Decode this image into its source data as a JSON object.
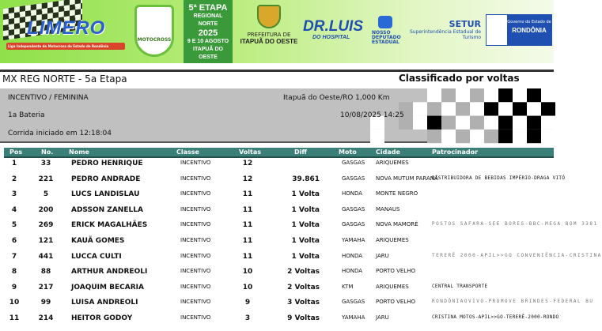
{
  "banner": {
    "limero": {
      "word": "LIMERO",
      "subtitle": "Liga Independente de Motocross do Estado de Rondônia"
    },
    "event_badge": "MOTOCROSS",
    "etapa": [
      "5ª ETAPA",
      "REGIONAL NORTE",
      "2025",
      "9 E 10 AGOSTO",
      "ITAPUÃ DO OESTE"
    ],
    "prefeitura": {
      "line1": "PREFEITURA DE",
      "line2": "ITAPUÃ DO OESTE"
    },
    "drluis": {
      "name": "DR.LUIS",
      "sub": "DO HOSPITAL"
    },
    "deputado": [
      "NOSSO",
      "DEPUTADO",
      "ESTADUAL"
    ],
    "setur": {
      "title": "SETUR",
      "sub": "Superintendência Estadual de Turismo"
    },
    "rondonia": {
      "line1": "Governo do Estado de",
      "line2": "RONDÔNIA"
    }
  },
  "header": {
    "title": "MX REG NORTE - 5a Etapa",
    "classification": "Classificado por voltas"
  },
  "info": {
    "category": "INCENTIVO / FEMININA",
    "heat": "1a Bateria",
    "start": "Corrida iniciado em 12:18:04",
    "location": "Itapuã do Oeste/RO 1,000 Km",
    "datetime": "10/08/2025 14:25"
  },
  "columns": [
    "Pos",
    "No.",
    "Nome",
    "Classe",
    "Voltas",
    "Diff",
    "Moto",
    "Cidade",
    "Patrocinador"
  ],
  "rows": [
    {
      "pos": "1",
      "no": "33",
      "nome": "PEDRO HENRIQUE",
      "classe": "INCENTIVO",
      "voltas": "12",
      "diff": "",
      "moto": "GASGAS",
      "cidade": "ARIQUEMES",
      "patrocinador": ""
    },
    {
      "pos": "2",
      "no": "221",
      "nome": "PEDRO ANDRADE",
      "classe": "INCENTIVO",
      "voltas": "12",
      "diff": "39.861",
      "moto": "GASGAS",
      "cidade": "NOVA MUTUM PARANÁ",
      "patrocinador": "DISTRIBUIDORA DE BEBIDAS IMPÉRIO-DRAGA VITÓ"
    },
    {
      "pos": "3",
      "no": "5",
      "nome": "LUCS LANDISLAU",
      "classe": "INCENTIVO",
      "voltas": "11",
      "diff": "1 Volta",
      "moto": "HONDA",
      "cidade": "MONTE NEGRO",
      "patrocinador": ""
    },
    {
      "pos": "4",
      "no": "200",
      "nome": "ADSSON ZANELLA",
      "classe": "INCENTIVO",
      "voltas": "11",
      "diff": "1 Volta",
      "moto": "GASGAS",
      "cidade": "MANAUS",
      "patrocinador": ""
    },
    {
      "pos": "5",
      "no": "269",
      "nome": "ERICK MAGALHÃES",
      "classe": "INCENTIVO",
      "voltas": "11",
      "diff": "1 Volta",
      "moto": "GASGAS",
      "cidade": "NOVA MAMORÉ",
      "patrocinador": "POSTOS SAFARA-SEE BORES-BBC-MEGA BOM 3381"
    },
    {
      "pos": "6",
      "no": "121",
      "nome": "KAUÃ GOMES",
      "classe": "INCENTIVO",
      "voltas": "11",
      "diff": "1 Volta",
      "moto": "YAMAHA",
      "cidade": "ARIQUEMES",
      "patrocinador": ""
    },
    {
      "pos": "7",
      "no": "441",
      "nome": "LUCCA CULTI",
      "classe": "INCENTIVO",
      "voltas": "11",
      "diff": "1 Volta",
      "moto": "HONDA",
      "cidade": "JARU",
      "patrocinador": "TERERÊ 2000-APIL>>GO CONVENIÊNCIA-CRISTINA"
    },
    {
      "pos": "8",
      "no": "88",
      "nome": "ARTHUR ANDREOLI",
      "classe": "INCENTIVO",
      "voltas": "10",
      "diff": "2 Voltas",
      "moto": "HONDA",
      "cidade": "PORTO VELHO",
      "patrocinador": ""
    },
    {
      "pos": "9",
      "no": "217",
      "nome": "JOAQUIM BECARIA",
      "classe": "INCENTIVO",
      "voltas": "10",
      "diff": "2 Voltas",
      "moto": "KTM",
      "cidade": "ARIQUEMES",
      "patrocinador": "CENTRAL TRANSPORTE"
    },
    {
      "pos": "10",
      "no": "99",
      "nome": "LUISA ANDREOLI",
      "classe": "INCENTIVO",
      "voltas": "9",
      "diff": "3 Voltas",
      "moto": "GASGAS",
      "cidade": "PORTO VELHO",
      "patrocinador": "RONDÔNIAOVIVO-PROMOVE BRINDES-FEDERAL BU"
    },
    {
      "pos": "11",
      "no": "214",
      "nome": "HEITOR GODOY",
      "classe": "INCENTIVO",
      "voltas": "3",
      "diff": "9 Voltas",
      "moto": "YAMAHA",
      "cidade": "JARU",
      "patrocinador": "CRISTINA MOTOS-APIL>>GO-TERERÊ-2000-RONDO"
    }
  ],
  "colors": {
    "header_bg": "#3a7f78",
    "info_bg": "#c0c0c0",
    "banner_green": "#8fe04a"
  }
}
